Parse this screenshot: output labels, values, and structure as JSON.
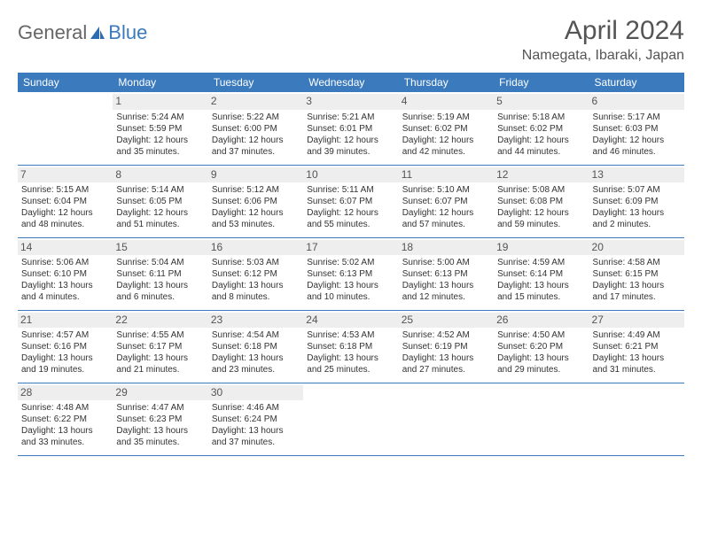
{
  "brand": {
    "part1": "General",
    "part2": "Blue"
  },
  "title": "April 2024",
  "location": "Namegata, Ibaraki, Japan",
  "colors": {
    "header_bg": "#3a7abd",
    "header_text": "#ffffff",
    "page_bg": "#ffffff",
    "text": "#333333",
    "daynum_bg": "#eeeeee",
    "border": "#3a7abd"
  },
  "day_headers": [
    "Sunday",
    "Monday",
    "Tuesday",
    "Wednesday",
    "Thursday",
    "Friday",
    "Saturday"
  ],
  "weeks": [
    [
      {
        "n": "",
        "sr": "",
        "ss": "",
        "dl": ""
      },
      {
        "n": "1",
        "sr": "Sunrise: 5:24 AM",
        "ss": "Sunset: 5:59 PM",
        "dl": "Daylight: 12 hours and 35 minutes."
      },
      {
        "n": "2",
        "sr": "Sunrise: 5:22 AM",
        "ss": "Sunset: 6:00 PM",
        "dl": "Daylight: 12 hours and 37 minutes."
      },
      {
        "n": "3",
        "sr": "Sunrise: 5:21 AM",
        "ss": "Sunset: 6:01 PM",
        "dl": "Daylight: 12 hours and 39 minutes."
      },
      {
        "n": "4",
        "sr": "Sunrise: 5:19 AM",
        "ss": "Sunset: 6:02 PM",
        "dl": "Daylight: 12 hours and 42 minutes."
      },
      {
        "n": "5",
        "sr": "Sunrise: 5:18 AM",
        "ss": "Sunset: 6:02 PM",
        "dl": "Daylight: 12 hours and 44 minutes."
      },
      {
        "n": "6",
        "sr": "Sunrise: 5:17 AM",
        "ss": "Sunset: 6:03 PM",
        "dl": "Daylight: 12 hours and 46 minutes."
      }
    ],
    [
      {
        "n": "7",
        "sr": "Sunrise: 5:15 AM",
        "ss": "Sunset: 6:04 PM",
        "dl": "Daylight: 12 hours and 48 minutes."
      },
      {
        "n": "8",
        "sr": "Sunrise: 5:14 AM",
        "ss": "Sunset: 6:05 PM",
        "dl": "Daylight: 12 hours and 51 minutes."
      },
      {
        "n": "9",
        "sr": "Sunrise: 5:12 AM",
        "ss": "Sunset: 6:06 PM",
        "dl": "Daylight: 12 hours and 53 minutes."
      },
      {
        "n": "10",
        "sr": "Sunrise: 5:11 AM",
        "ss": "Sunset: 6:07 PM",
        "dl": "Daylight: 12 hours and 55 minutes."
      },
      {
        "n": "11",
        "sr": "Sunrise: 5:10 AM",
        "ss": "Sunset: 6:07 PM",
        "dl": "Daylight: 12 hours and 57 minutes."
      },
      {
        "n": "12",
        "sr": "Sunrise: 5:08 AM",
        "ss": "Sunset: 6:08 PM",
        "dl": "Daylight: 12 hours and 59 minutes."
      },
      {
        "n": "13",
        "sr": "Sunrise: 5:07 AM",
        "ss": "Sunset: 6:09 PM",
        "dl": "Daylight: 13 hours and 2 minutes."
      }
    ],
    [
      {
        "n": "14",
        "sr": "Sunrise: 5:06 AM",
        "ss": "Sunset: 6:10 PM",
        "dl": "Daylight: 13 hours and 4 minutes."
      },
      {
        "n": "15",
        "sr": "Sunrise: 5:04 AM",
        "ss": "Sunset: 6:11 PM",
        "dl": "Daylight: 13 hours and 6 minutes."
      },
      {
        "n": "16",
        "sr": "Sunrise: 5:03 AM",
        "ss": "Sunset: 6:12 PM",
        "dl": "Daylight: 13 hours and 8 minutes."
      },
      {
        "n": "17",
        "sr": "Sunrise: 5:02 AM",
        "ss": "Sunset: 6:13 PM",
        "dl": "Daylight: 13 hours and 10 minutes."
      },
      {
        "n": "18",
        "sr": "Sunrise: 5:00 AM",
        "ss": "Sunset: 6:13 PM",
        "dl": "Daylight: 13 hours and 12 minutes."
      },
      {
        "n": "19",
        "sr": "Sunrise: 4:59 AM",
        "ss": "Sunset: 6:14 PM",
        "dl": "Daylight: 13 hours and 15 minutes."
      },
      {
        "n": "20",
        "sr": "Sunrise: 4:58 AM",
        "ss": "Sunset: 6:15 PM",
        "dl": "Daylight: 13 hours and 17 minutes."
      }
    ],
    [
      {
        "n": "21",
        "sr": "Sunrise: 4:57 AM",
        "ss": "Sunset: 6:16 PM",
        "dl": "Daylight: 13 hours and 19 minutes."
      },
      {
        "n": "22",
        "sr": "Sunrise: 4:55 AM",
        "ss": "Sunset: 6:17 PM",
        "dl": "Daylight: 13 hours and 21 minutes."
      },
      {
        "n": "23",
        "sr": "Sunrise: 4:54 AM",
        "ss": "Sunset: 6:18 PM",
        "dl": "Daylight: 13 hours and 23 minutes."
      },
      {
        "n": "24",
        "sr": "Sunrise: 4:53 AM",
        "ss": "Sunset: 6:18 PM",
        "dl": "Daylight: 13 hours and 25 minutes."
      },
      {
        "n": "25",
        "sr": "Sunrise: 4:52 AM",
        "ss": "Sunset: 6:19 PM",
        "dl": "Daylight: 13 hours and 27 minutes."
      },
      {
        "n": "26",
        "sr": "Sunrise: 4:50 AM",
        "ss": "Sunset: 6:20 PM",
        "dl": "Daylight: 13 hours and 29 minutes."
      },
      {
        "n": "27",
        "sr": "Sunrise: 4:49 AM",
        "ss": "Sunset: 6:21 PM",
        "dl": "Daylight: 13 hours and 31 minutes."
      }
    ],
    [
      {
        "n": "28",
        "sr": "Sunrise: 4:48 AM",
        "ss": "Sunset: 6:22 PM",
        "dl": "Daylight: 13 hours and 33 minutes."
      },
      {
        "n": "29",
        "sr": "Sunrise: 4:47 AM",
        "ss": "Sunset: 6:23 PM",
        "dl": "Daylight: 13 hours and 35 minutes."
      },
      {
        "n": "30",
        "sr": "Sunrise: 4:46 AM",
        "ss": "Sunset: 6:24 PM",
        "dl": "Daylight: 13 hours and 37 minutes."
      },
      {
        "n": "",
        "sr": "",
        "ss": "",
        "dl": ""
      },
      {
        "n": "",
        "sr": "",
        "ss": "",
        "dl": ""
      },
      {
        "n": "",
        "sr": "",
        "ss": "",
        "dl": ""
      },
      {
        "n": "",
        "sr": "",
        "ss": "",
        "dl": ""
      }
    ]
  ]
}
